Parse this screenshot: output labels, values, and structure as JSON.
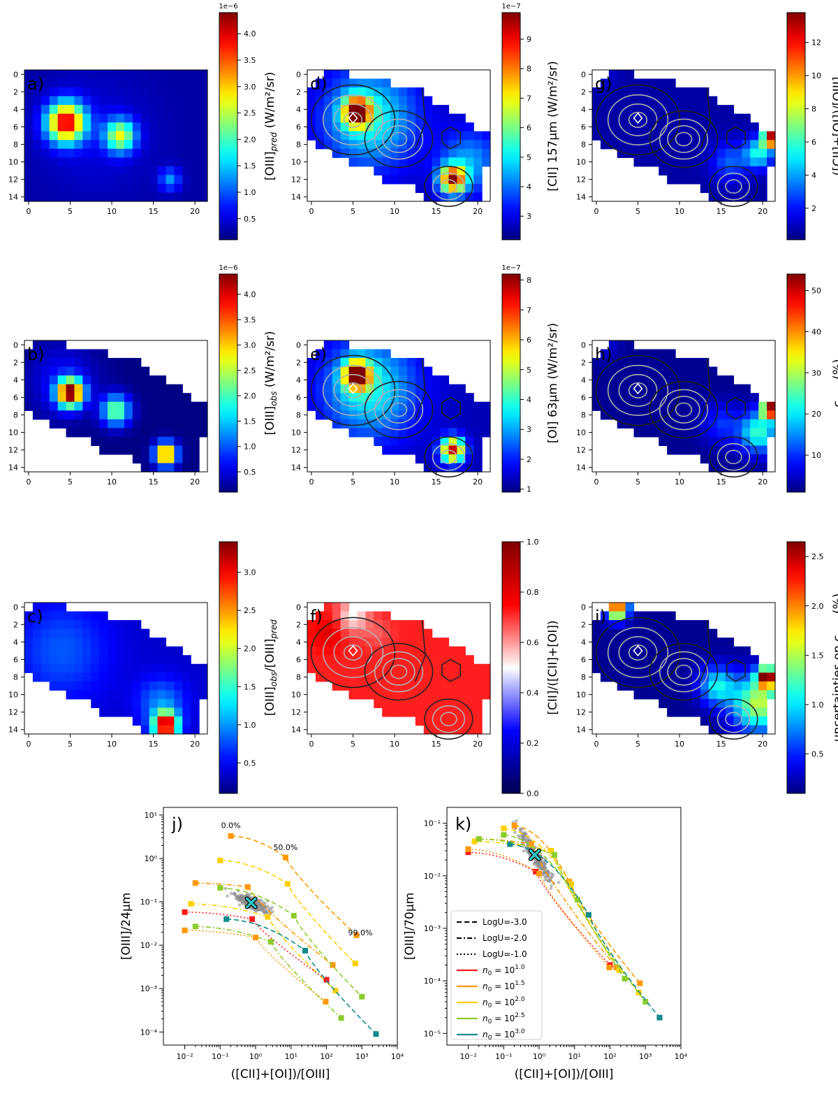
{
  "colormap": [
    "#00007f",
    "#0000ff",
    "#007fff",
    "#00ffff",
    "#7fff7f",
    "#ffff00",
    "#ff7f00",
    "#ff0000",
    "#7f0000"
  ],
  "colors": {
    "contour_dark": "#222222",
    "contour_light": "#b0b0b0",
    "scatter": "#8a8a8a",
    "marker_x": "#2ec4c4",
    "bwr_blue": "#0000ff",
    "bwr_red": "#ff0000",
    "seismic_dark_red": "#800000",
    "seismic_dark_blue": "#000080"
  },
  "chart_data": [
    {
      "type": "heatmap",
      "panel": "a)",
      "cmap": "jet",
      "cbar_label": "[OIII]pred (W/m²/sr)",
      "cbar_label_main": "[OIII]",
      "cbar_label_sub": "pred",
      "cbar_label_unit": " (W/m²/sr)",
      "cbar_ticks": [
        "0.5",
        "1.0",
        "1.5",
        "2.0",
        "2.5",
        "3.0",
        "3.5",
        "4.0"
      ],
      "cbar_range": [
        0.1,
        4.4
      ],
      "cbar_exponent": "1e−6",
      "xticks": [
        "0",
        "5",
        "10",
        "15",
        "20"
      ],
      "yticks": [
        "0",
        "2",
        "4",
        "6",
        "8",
        "10",
        "12",
        "14"
      ],
      "contours": false,
      "diamond": false,
      "mask": "full",
      "field": "pred"
    },
    {
      "type": "heatmap",
      "panel": "b)",
      "cmap": "jet",
      "cbar_label": "[OIII]obs (W/m²/sr)",
      "cbar_label_main": "[OIII]",
      "cbar_label_sub": "obs",
      "cbar_label_unit": " (W/m²/sr)",
      "cbar_ticks": [
        "0.5",
        "1.0",
        "1.5",
        "2.0",
        "2.5",
        "3.0",
        "3.5",
        "4.0"
      ],
      "cbar_range": [
        0.1,
        4.4
      ],
      "cbar_exponent": "1e−6",
      "xticks": [
        "0",
        "5",
        "10",
        "15",
        "20"
      ],
      "yticks": [
        "0",
        "2",
        "4",
        "6",
        "8",
        "10",
        "12",
        "14"
      ],
      "contours": false,
      "diamond": false,
      "mask": "oiii",
      "field": "obs"
    },
    {
      "type": "heatmap",
      "panel": "c)",
      "cmap": "jet",
      "cbar_label": "[OIII]obs/[OIII]pred",
      "cbar_label_main": "[OIII]",
      "cbar_label_sub": "obs",
      "cbar_label_mid": "/[OIII]",
      "cbar_label_sub2": "pred",
      "cbar_ticks": [
        "0.5",
        "1.0",
        "1.5",
        "2.0",
        "2.5",
        "3.0"
      ],
      "cbar_range": [
        0.1,
        3.4
      ],
      "cbar_exponent": "",
      "xticks": [
        "0",
        "5",
        "10",
        "15",
        "20"
      ],
      "yticks": [
        "0",
        "2",
        "4",
        "6",
        "8",
        "10",
        "12",
        "14"
      ],
      "contours": false,
      "diamond": false,
      "mask": "oiii",
      "field": "ratio"
    },
    {
      "type": "heatmap",
      "panel": "d)",
      "cmap": "jet",
      "cbar_label": "[CII] 157µm (W/m²/sr)",
      "cbar_ticks": [
        "3",
        "4",
        "5",
        "6",
        "7",
        "8",
        "9"
      ],
      "cbar_range": [
        2.2,
        9.9
      ],
      "cbar_exponent": "1e−7",
      "xticks": [
        "0",
        "5",
        "10",
        "15",
        "20"
      ],
      "yticks": [
        "0",
        "2",
        "4",
        "6",
        "8",
        "10",
        "12",
        "14"
      ],
      "contours": true,
      "diamond": true,
      "mask": "pdr",
      "field": "cii"
    },
    {
      "type": "heatmap",
      "panel": "e)",
      "cmap": "jet",
      "cbar_label": "[OI] 63µm (W/m²/sr)",
      "cbar_ticks": [
        "1",
        "2",
        "3",
        "4",
        "5",
        "6",
        "7",
        "8"
      ],
      "cbar_range": [
        0.9,
        8.2
      ],
      "cbar_exponent": "1e−7",
      "xticks": [
        "0",
        "5",
        "10",
        "15",
        "20"
      ],
      "yticks": [
        "0",
        "2",
        "4",
        "6",
        "8",
        "10",
        "12",
        "14"
      ],
      "contours": true,
      "diamond": true,
      "mask": "pdr",
      "field": "oi"
    },
    {
      "type": "heatmap",
      "panel": "f)",
      "cmap": "seismic",
      "cbar_label": "[CII]/([CII]+[OI])",
      "cbar_ticks": [
        "0.0",
        "0.2",
        "0.4",
        "0.6",
        "0.8",
        "1.0"
      ],
      "cbar_range": [
        0.0,
        1.0
      ],
      "cbar_exponent": "",
      "xticks": [
        "0",
        "5",
        "10",
        "15",
        "20"
      ],
      "yticks": [
        "0",
        "2",
        "4",
        "6",
        "8",
        "10",
        "12",
        "14"
      ],
      "contours": true,
      "diamond": true,
      "mask": "pdr",
      "field": "frac"
    },
    {
      "type": "heatmap",
      "panel": "g)",
      "cmap": "jet",
      "cbar_label": "([CII]+[OI])/[OIII]",
      "cbar_ticks": [
        "2",
        "4",
        "6",
        "8",
        "10",
        "12"
      ],
      "cbar_range": [
        0.1,
        13.8
      ],
      "cbar_exponent": "",
      "xticks": [
        "0",
        "5",
        "10",
        "15",
        "20"
      ],
      "yticks": [
        "0",
        "2",
        "4",
        "6",
        "8",
        "10",
        "12",
        "14"
      ],
      "contours": true,
      "diamond": true,
      "mask": "pdr",
      "field": "g"
    },
    {
      "type": "heatmap",
      "panel": "h)",
      "cmap": "jet",
      "cbar_label": "cPDR (%)",
      "cbar_label_main": "c",
      "cbar_label_sub": "PDR",
      "cbar_label_unit": " (%)",
      "cbar_ticks": [
        "10",
        "20",
        "30",
        "40",
        "50"
      ],
      "cbar_range": [
        1,
        54
      ],
      "cbar_exponent": "",
      "xticks": [
        "0",
        "5",
        "10",
        "15",
        "20"
      ],
      "yticks": [
        "0",
        "2",
        "4",
        "6",
        "8",
        "10",
        "12",
        "14"
      ],
      "contours": true,
      "diamond": true,
      "mask": "pdr",
      "field": "h"
    },
    {
      "type": "heatmap",
      "panel": "i)",
      "cmap": "jet",
      "cbar_label": "uncertainties on cPDR (%)",
      "cbar_label_main": "uncertainties on c",
      "cbar_label_sub": "PDR",
      "cbar_label_unit": " (%)",
      "cbar_ticks": [
        "0.5",
        "1.0",
        "1.5",
        "2.0",
        "2.5"
      ],
      "cbar_range": [
        0.1,
        2.65
      ],
      "cbar_exponent": "",
      "xticks": [
        "0",
        "5",
        "10",
        "15",
        "20"
      ],
      "yticks": [
        "0",
        "2",
        "4",
        "6",
        "8",
        "10",
        "12",
        "14"
      ],
      "contours": true,
      "diamond": true,
      "mask": "pdr",
      "field": "i"
    },
    {
      "type": "line",
      "panel": "j)",
      "xscale": "log",
      "yscale": "log",
      "xlim": [
        0.0025,
        10000
      ],
      "ylim": [
        5e-05,
        15
      ],
      "xlabel": "([CII]+[OI])/[OIII]",
      "ylabel": "[OIII]/24µm",
      "xticks": [
        "10⁻²",
        "10⁻¹",
        "10⁰",
        "10¹",
        "10²",
        "10³",
        "10⁴"
      ],
      "yticks": [
        "10⁻⁴",
        "10⁻³",
        "10⁻²",
        "10⁻¹",
        "10⁰",
        "10¹"
      ],
      "annotations": [
        {
          "text": "0.0%",
          "x": 0.2,
          "y": 5.0
        },
        {
          "text": "50.0%",
          "x": 7,
          "y": 1.55
        },
        {
          "text": "99.0%",
          "x": 900,
          "y": 0.017
        }
      ],
      "marker": {
        "x": 0.75,
        "y": 0.095
      },
      "series": [
        {
          "name": "n0=10^1.5, logU=-3",
          "n0": "1.5",
          "logU": "-3.0",
          "x": [
            0.2,
            7,
            700
          ],
          "y": [
            3.3,
            1.05,
            0.017
          ]
        },
        {
          "name": "n0=10^2.0, logU=-3",
          "n0": "2.0",
          "logU": "-3.0",
          "x": [
            0.1,
            8,
            650
          ],
          "y": [
            0.9,
            0.26,
            0.0038
          ]
        },
        {
          "name": "n0=10^1.5, logU=-2",
          "n0": "1.5",
          "logU": "-2.0",
          "x": [
            0.02,
            0.6,
            150
          ],
          "y": [
            0.27,
            0.22,
            0.0035
          ]
        },
        {
          "name": "n0=10^2.5, logU=-3",
          "n0": "2.5",
          "logU": "-3.0",
          "x": [
            0.1,
            12,
            1000
          ],
          "y": [
            0.21,
            0.048,
            0.00065
          ]
        },
        {
          "name": "n0=10^2.0, logU=-2",
          "n0": "2.0",
          "logU": "-2.0",
          "x": [
            0.015,
            2.2,
            180
          ],
          "y": [
            0.09,
            0.045,
            0.0009
          ]
        },
        {
          "name": "n0=10^1.0, logU=-1",
          "n0": "1.0",
          "logU": "-1.0",
          "x": [
            0.01,
            0.8,
            100
          ],
          "y": [
            0.058,
            0.04,
            0.0016
          ]
        },
        {
          "name": "n0=10^3.0, logU=-3",
          "n0": "3.0",
          "logU": "-3.0",
          "x": [
            0.15,
            25,
            2500
          ],
          "y": [
            0.04,
            0.0075,
            9e-05
          ]
        },
        {
          "name": "n0=10^2.5, logU=-2",
          "n0": "2.5",
          "logU": "-2.0",
          "x": [
            0.02,
            2.7,
            260
          ],
          "y": [
            0.027,
            0.012,
            0.00021
          ]
        },
        {
          "name": "n0=10^1.5, logU=-1",
          "n0": "1.5",
          "logU": "-1.0",
          "x": [
            0.01,
            1.0,
            95
          ],
          "y": [
            0.022,
            0.015,
            0.0005
          ]
        }
      ]
    },
    {
      "type": "line",
      "panel": "k)",
      "xscale": "log",
      "yscale": "log",
      "xlim": [
        0.0025,
        10000
      ],
      "ylim": [
        6e-06,
        0.2
      ],
      "xlabel": "([CII]+[OI])/[OIII]",
      "ylabel": "[OIII]/70µm",
      "xticks": [
        "10⁻²",
        "10⁻¹",
        "10⁰",
        "10¹",
        "10²",
        "10³",
        "10⁴"
      ],
      "yticks": [
        "10⁻⁵",
        "10⁻⁴",
        "10⁻³",
        "10⁻²",
        "10⁻¹"
      ],
      "marker": {
        "x": 0.75,
        "y": 0.025
      },
      "series": [
        {
          "name": "n0=10^1.5, logU=-3",
          "n0": "1.5",
          "logU": "-3.0",
          "x": [
            0.2,
            7,
            700
          ],
          "y": [
            0.09,
            0.0078,
            9e-05
          ]
        },
        {
          "name": "n0=10^2.0, logU=-3",
          "n0": "2.0",
          "logU": "-3.0",
          "x": [
            0.1,
            8,
            650
          ],
          "y": [
            0.08,
            0.007,
            6e-05
          ]
        },
        {
          "name": "n0=10^1.5, logU=-2",
          "n0": "1.5",
          "logU": "-2.0",
          "x": [
            0.02,
            0.6,
            150
          ],
          "y": [
            0.05,
            0.04,
            0.00018
          ]
        },
        {
          "name": "n0=10^2.5, logU=-3",
          "n0": "2.5",
          "logU": "-3.0",
          "x": [
            0.1,
            12,
            1000
          ],
          "y": [
            0.06,
            0.0035,
            4e-05
          ]
        },
        {
          "name": "n0=10^2.0, logU=-2",
          "n0": "2.0",
          "logU": "-2.0",
          "x": [
            0.015,
            2.2,
            180
          ],
          "y": [
            0.045,
            0.03,
            0.00016
          ]
        },
        {
          "name": "n0=10^1.0, logU=-1",
          "n0": "1.0",
          "logU": "-1.0",
          "x": [
            0.01,
            0.8,
            100
          ],
          "y": [
            0.028,
            0.012,
            0.0002
          ]
        },
        {
          "name": "n0=10^3.0, logU=-3",
          "n0": "3.0",
          "logU": "-3.0",
          "x": [
            0.15,
            25,
            2500
          ],
          "y": [
            0.04,
            0.0018,
            2e-05
          ]
        },
        {
          "name": "n0=10^2.5, logU=-2",
          "n0": "2.5",
          "logU": "-2.0",
          "x": [
            0.02,
            2.7,
            260
          ],
          "y": [
            0.05,
            0.025,
            0.00011
          ]
        },
        {
          "name": "n0=10^1.5, logU=-1",
          "n0": "1.5",
          "logU": "-1.0",
          "x": [
            0.01,
            1.0,
            95
          ],
          "y": [
            0.032,
            0.011,
            0.00018
          ]
        }
      ]
    }
  ],
  "legend": {
    "placement": "lower-left of panel k",
    "style_items": [
      {
        "label": "LogU=-3.0",
        "dash": "dashed"
      },
      {
        "label": "LogU=-2.0",
        "dash": "dashdot"
      },
      {
        "label": "LogU=-1.0",
        "dash": "dotted"
      }
    ],
    "color_items": [
      {
        "prefix": "n",
        "sub": "0",
        "mid": " = 10",
        "sup": "1.0",
        "color": "#ff1a1a"
      },
      {
        "prefix": "n",
        "sub": "0",
        "mid": " = 10",
        "sup": "1.5",
        "color": "#ff9900"
      },
      {
        "prefix": "n",
        "sub": "0",
        "mid": " = 10",
        "sup": "2.0",
        "color": "#ffd000"
      },
      {
        "prefix": "n",
        "sub": "0",
        "mid": " = 10",
        "sup": "2.5",
        "color": "#8ccc2a"
      },
      {
        "prefix": "n",
        "sub": "0",
        "mid": " = 10",
        "sup": "3.0",
        "color": "#0f8a8a"
      }
    ]
  }
}
